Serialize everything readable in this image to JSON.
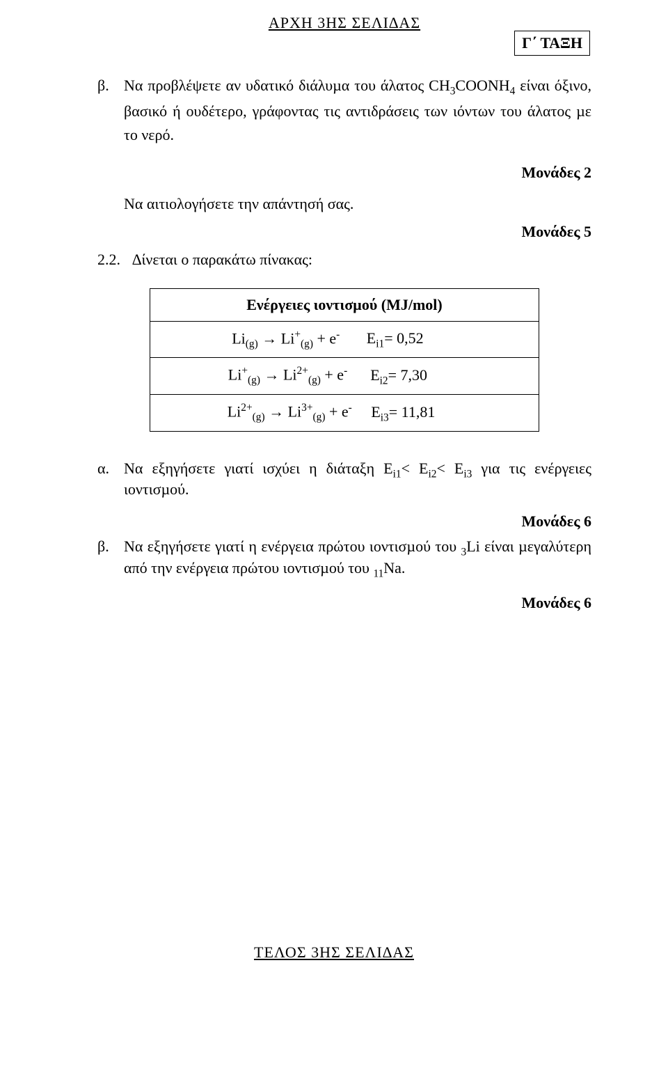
{
  "header": "ΑΡΧΗ 3ΗΣ ΣΕΛΙ∆ΑΣ",
  "class_box": "Γ΄ ΤΑΞΗ",
  "beta": {
    "label": "β.",
    "text_prefix": "Να προβλέψετε αν υδατικό διάλυµα του άλατος CH",
    "text_suffix": " είναι όξινο, βασικό ή ουδέτερο, γράφοντας τις αντιδράσεις των ιόντων του άλατος µε το νερό.",
    "sub1": "3",
    "mid": "COONH",
    "sub2": "4"
  },
  "points2": "Μονάδες 2",
  "justify_line": "Να αιτιολογήσετε την απάντησή σας.",
  "points5": "Μονάδες 5",
  "q22": {
    "label": "2.2.",
    "text": "∆ίνεται ο παρακάτω πίνακας:"
  },
  "table": {
    "header": "Ενέργειες ιοντισµού (ΜJ/mol)",
    "rows": [
      {
        "lhs": "Li<sub>(g)</sub> → Li<sup>+</sup><sub>(g)</sub> + e<sup>-</sup>",
        "rhs": "E<sub>i1</sub>= 0,52"
      },
      {
        "lhs": "Li<sup>+</sup><sub>(g)</sub> → Li<sup>2+</sup><sub>(g)</sub> + e<sup>-</sup>",
        "rhs": "E<sub>i2</sub>= 7,30"
      },
      {
        "lhs": "Li<sup>2+</sup><sub>(g)</sub> → Li<sup>3+</sup><sub>(g)</sub> + e<sup>-</sup>",
        "rhs": "E<sub>i3</sub>= 11,81"
      }
    ]
  },
  "alpha": {
    "label": "α.",
    "text_pre": "Να εξηγήσετε γιατί ισχύει η διάταξη Ε",
    "t1": "i1",
    "t_lt1": "< Ε",
    "t2": "i2",
    "t_lt2": "< Ε",
    "t3": "i3",
    "text_post": " για τις ενέργειες ιοντισµού."
  },
  "points6a": "Μονάδες 6",
  "beta2": {
    "label": "β.",
    "text_pre": "Να εξηγήσετε γιατί η ενέργεια πρώτου ιοντισµού του ",
    "sub1": "3",
    "li": "Li είναι µεγαλύτερη από την ενέργεια πρώτου ιοντισµού του ",
    "sub2": "11",
    "na": "Na."
  },
  "points6b": "Μονάδες 6",
  "footer": "ΤΕΛΟΣ 3ΗΣ ΣΕΛΙ∆ΑΣ"
}
